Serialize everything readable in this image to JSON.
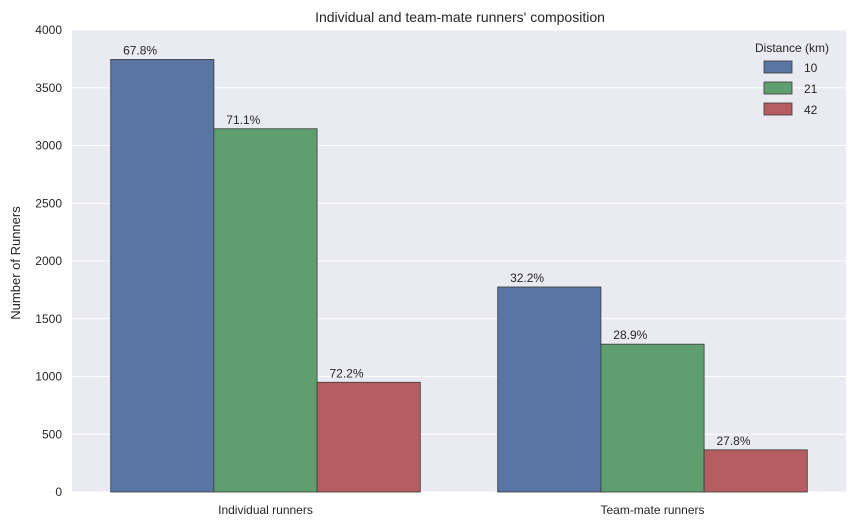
{
  "chart_data": {
    "type": "bar",
    "title": "Individual and team-mate runners' composition",
    "xlabel": "",
    "ylabel": "Number of Runners",
    "categories": [
      "Individual runners",
      "Team-mate runners"
    ],
    "series": [
      {
        "name": "10",
        "values": [
          3745,
          1775
        ],
        "labels": [
          "67.8%",
          "32.2%"
        ],
        "color": "#5975a4"
      },
      {
        "name": "21",
        "values": [
          3145,
          1280
        ],
        "labels": [
          "71.1%",
          "28.9%"
        ],
        "color": "#5f9e6e"
      },
      {
        "name": "42",
        "values": [
          950,
          365
        ],
        "labels": [
          "72.2%",
          "27.8%"
        ],
        "color": "#b55d60"
      }
    ],
    "ylim": [
      0,
      4000
    ],
    "yticks": [
      "0",
      "500",
      "1000",
      "1500",
      "2000",
      "2500",
      "3000",
      "3500",
      "4000"
    ],
    "grid": true,
    "legend": {
      "title": "Distance (km)",
      "placement": "top-right"
    },
    "background_color": "#eaeaf2"
  }
}
